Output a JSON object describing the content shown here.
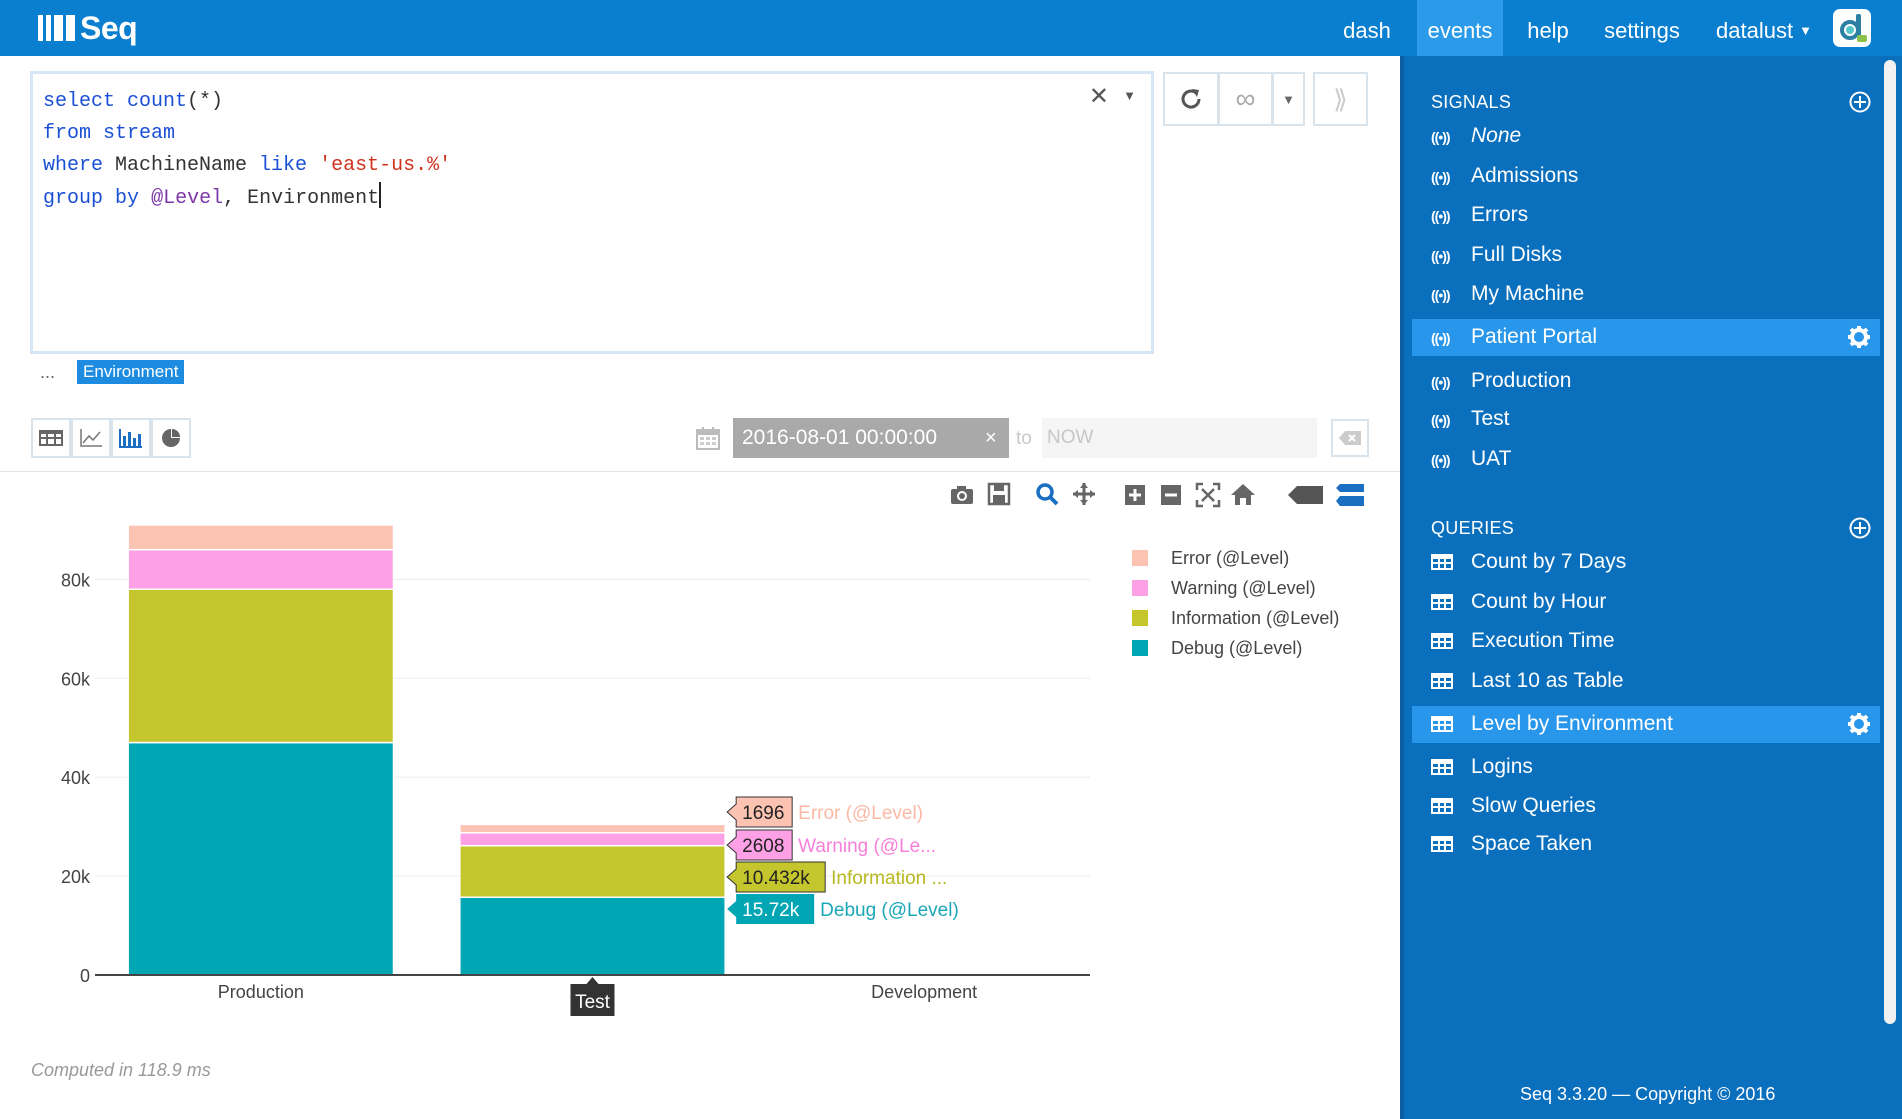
{
  "app": {
    "logo_text": "Seq"
  },
  "nav": {
    "dash": "dash",
    "events": "events",
    "help": "help",
    "settings": "settings",
    "user": "datalust"
  },
  "query": {
    "lines": [
      "select count(*)",
      "from stream",
      "where MachineName like 'east-us.%'",
      "group by @Level, Environment"
    ]
  },
  "column_tags": {
    "ellipsis": "...",
    "tag": "Environment"
  },
  "range": {
    "from": "2016-08-01 00:00:00",
    "to_label": "to",
    "to_placeholder": "NOW",
    "clear_glyph": "×"
  },
  "chart_data": {
    "type": "bar",
    "stacked": true,
    "categories": [
      "Production",
      "Test",
      "Development"
    ],
    "series": [
      {
        "name": "Debug (@Level)",
        "color": "#00a6b3",
        "values": [
          47000,
          15720,
          0
        ]
      },
      {
        "name": "Information (@Level)",
        "color": "#c5c52e",
        "values": [
          31000,
          10432,
          0
        ]
      },
      {
        "name": "Warning (@Level)",
        "color": "#fda0e5",
        "values": [
          8000,
          2608,
          0
        ]
      },
      {
        "name": "Error (@Level)",
        "color": "#fcc3b2",
        "values": [
          5000,
          1696,
          0
        ]
      }
    ],
    "legend_order": [
      "Error (@Level)",
      "Warning (@Level)",
      "Information (@Level)",
      "Debug (@Level)"
    ],
    "ylim": [
      0,
      92000
    ],
    "yticks": [
      0,
      20000,
      40000,
      60000,
      80000
    ],
    "ytick_labels": [
      "0",
      "20k",
      "40k",
      "60k",
      "80k"
    ],
    "hover": {
      "category": "Test",
      "labels": [
        {
          "value": "1696",
          "text": "Error (@Level)"
        },
        {
          "value": "2608",
          "text": "Warning (@Le..."
        },
        {
          "value": "10.432k",
          "text": "Information ..."
        },
        {
          "value": "15.72k",
          "text": "Debug (@Level)"
        }
      ]
    },
    "legend_position": "top-right",
    "grid": true
  },
  "computed": "Computed in 118.9 ms",
  "sidebar": {
    "signals_title": "SIGNALS",
    "signals": [
      {
        "label": "None",
        "italic": true
      },
      {
        "label": "Admissions"
      },
      {
        "label": "Errors"
      },
      {
        "label": "Full Disks"
      },
      {
        "label": "My Machine"
      },
      {
        "label": "Patient Portal",
        "active": true
      },
      {
        "label": "Production"
      },
      {
        "label": "Test"
      },
      {
        "label": "UAT"
      }
    ],
    "queries_title": "QUERIES",
    "queries": [
      {
        "label": "Count by 7 Days"
      },
      {
        "label": "Count by Hour"
      },
      {
        "label": "Execution Time"
      },
      {
        "label": "Last 10 as Table"
      },
      {
        "label": "Level by Environment",
        "active": true
      },
      {
        "label": "Logins"
      },
      {
        "label": "Slow Queries"
      },
      {
        "label": "Space Taken"
      }
    ],
    "footer": "Seq 3.3.20 — Copyright © 2016"
  }
}
